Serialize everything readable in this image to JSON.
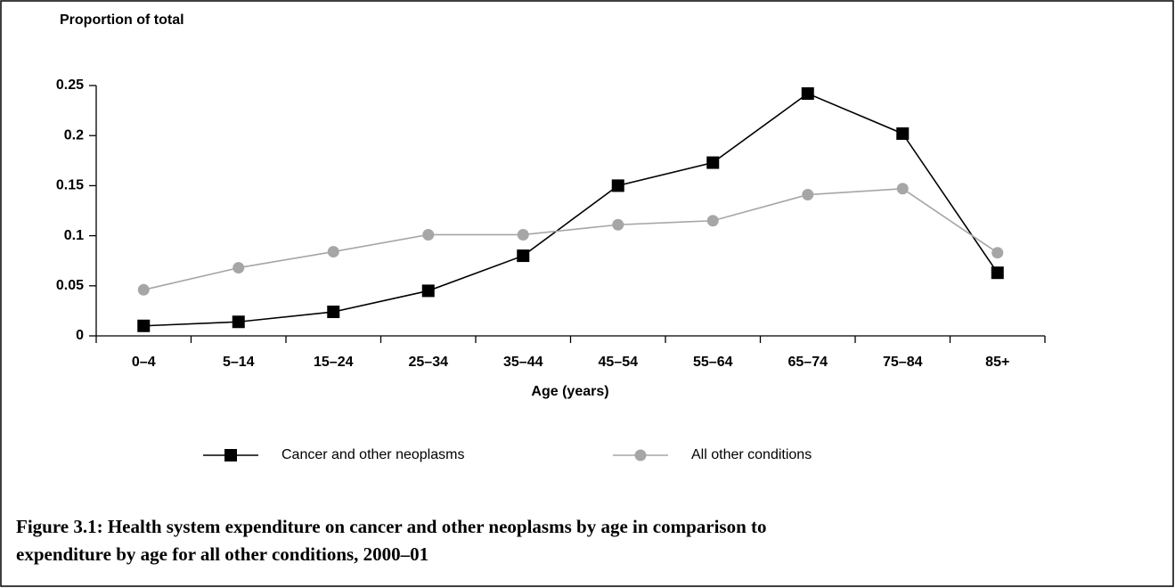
{
  "chart_data": {
    "type": "line",
    "y_label": "Proportion of total",
    "x_label": "Age (years)",
    "caption": [
      "Figure 3.1: Health system expenditure on cancer and other neoplasms by age in comparison to",
      "expenditure by age for all other conditions, 2000–01"
    ],
    "categories": [
      "0–4",
      "5–14",
      "15–24",
      "25–34",
      "35–44",
      "45–54",
      "55–64",
      "65–74",
      "75–84",
      "85+"
    ],
    "series": [
      {
        "name": "Cancer and other neoplasms",
        "color": "#000000",
        "marker": "square",
        "values": [
          0.01,
          0.014,
          0.024,
          0.045,
          0.08,
          0.15,
          0.173,
          0.242,
          0.202,
          0.063
        ]
      },
      {
        "name": "All other conditions",
        "color": "#a6a6a6",
        "marker": "circle",
        "values": [
          0.046,
          0.068,
          0.084,
          0.101,
          0.101,
          0.111,
          0.115,
          0.141,
          0.147,
          0.083
        ]
      }
    ],
    "ylim": [
      0,
      0.25
    ],
    "yticks": [
      0,
      0.05,
      0.1,
      0.15,
      0.2,
      0.25
    ]
  }
}
